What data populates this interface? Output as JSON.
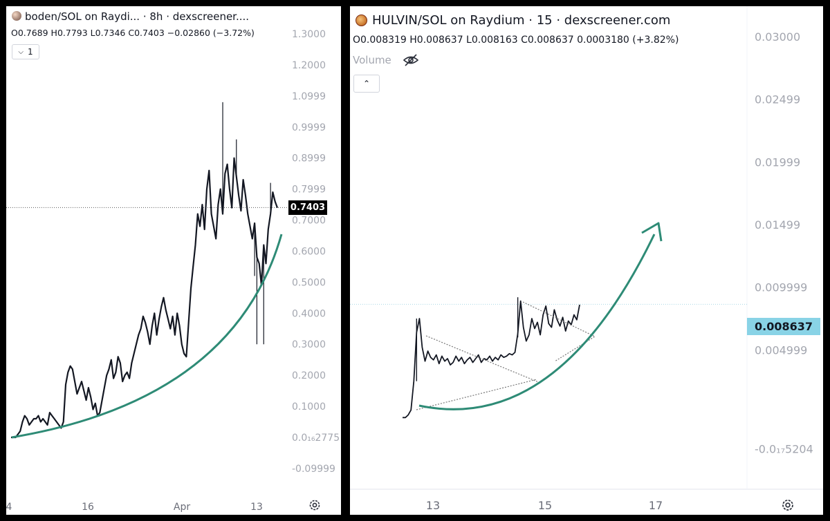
{
  "left": {
    "title": "boden/SOL on Raydi... · 8h · dexscreener....",
    "ohlc": "O0.7689 H0.7793 L0.7346 C0.7403 −0.02860 (−3.72%)",
    "collapse_label": "1",
    "last_price": "0.7403",
    "y_ticks": [
      "1.3000",
      "1.2000",
      "1.0999",
      "0.9999",
      "0.8999",
      "0.7999",
      "0.7000",
      "0.6000",
      "0.5000",
      "0.4000",
      "0.3000",
      "0.2000",
      "0.1000",
      "0.0₁₆2775",
      "-0.09999"
    ],
    "x_ticks": [
      "4",
      "16",
      "Apr",
      "13"
    ],
    "colors": {
      "line": "#131722",
      "curve": "#2e8b76",
      "tag_bg": "#000000",
      "tag_text": "#ffffff"
    }
  },
  "right": {
    "title": "HULVIN/SOL on Raydium · 15 · dexscreener.com",
    "ohlc": "O0.008319 H0.008637 L0.008163 C0.008637 0.0003180 (+3.82%)",
    "volume_label": "Volume",
    "last_price": "0.008637",
    "y_ticks": [
      "0.03000",
      "0.02499",
      "0.01999",
      "0.01499",
      "0.009999",
      "0.004999",
      "-0.0₁₇5204"
    ],
    "x_ticks": [
      "13",
      "15",
      "17"
    ],
    "colors": {
      "line": "#131722",
      "curve": "#2e8b76",
      "tag_bg": "#89d3e6",
      "tag_text": "#131722"
    }
  },
  "chart_data": [
    {
      "type": "line",
      "title": "boden/SOL on Raydi... · 8h · dexscreener....",
      "ylim": [
        -0.14,
        1.36
      ],
      "xlabel": "",
      "ylabel": "",
      "x_ticks": [
        "4",
        "16",
        "Apr",
        "13"
      ],
      "grid": false,
      "series": [
        {
          "values": [
            0.0,
            0.0,
            0.0,
            0.01,
            0.02,
            0.05,
            0.07,
            0.06,
            0.04,
            0.05,
            0.06,
            0.06,
            0.07,
            0.05,
            0.06,
            0.05,
            0.04,
            0.08,
            0.07,
            0.06,
            0.05,
            0.04,
            0.03,
            0.05,
            0.17,
            0.21,
            0.23,
            0.22,
            0.18,
            0.14,
            0.16,
            0.18,
            0.15,
            0.12,
            0.16,
            0.13,
            0.09,
            0.11,
            0.07,
            0.08,
            0.12,
            0.16,
            0.2,
            0.22,
            0.25,
            0.19,
            0.21,
            0.26,
            0.24,
            0.18,
            0.2,
            0.21,
            0.19,
            0.24,
            0.27,
            0.3,
            0.33,
            0.35,
            0.39,
            0.37,
            0.34,
            0.3,
            0.36,
            0.4,
            0.33,
            0.38,
            0.42,
            0.45,
            0.41,
            0.38,
            0.35,
            0.39,
            0.33,
            0.4,
            0.36,
            0.3,
            0.27,
            0.26,
            0.37,
            0.48,
            0.55,
            0.62,
            0.72,
            0.68,
            0.75,
            0.67,
            0.8,
            0.86,
            0.72,
            0.68,
            0.64,
            0.75,
            0.8,
            0.72,
            0.85,
            0.88,
            0.8,
            0.74,
            0.9,
            0.84,
            0.78,
            0.73,
            0.83,
            0.78,
            0.72,
            0.68,
            0.64,
            0.69,
            0.58,
            0.56,
            0.49,
            0.62,
            0.56,
            0.67,
            0.72,
            0.79,
            0.76,
            0.74
          ]
        }
      ],
      "annotations": [
        "0.7403"
      ]
    },
    {
      "type": "line",
      "title": "HULVIN/SOL on Raydium · 15 · dexscreener.com",
      "ylim": [
        -0.0025,
        0.031
      ],
      "xlabel": "",
      "ylabel": "",
      "x_ticks": [
        "13",
        "15",
        "17"
      ],
      "grid": false,
      "series": [
        {
          "values": [
            -0.0004,
            -0.0004,
            -0.0002,
            0.0002,
            0.0025,
            0.0064,
            0.0075,
            0.0052,
            0.0041,
            0.0049,
            0.0044,
            0.0042,
            0.0046,
            0.0039,
            0.0045,
            0.0041,
            0.0043,
            0.0038,
            0.004,
            0.0045,
            0.0041,
            0.0044,
            0.0039,
            0.0042,
            0.0044,
            0.004,
            0.0043,
            0.0046,
            0.004,
            0.0043,
            0.0042,
            0.0045,
            0.0041,
            0.0044,
            0.0042,
            0.0046,
            0.0044,
            0.0045,
            0.0047,
            0.0046,
            0.0048,
            0.0063,
            0.0089,
            0.0068,
            0.0057,
            0.0062,
            0.0075,
            0.0067,
            0.0072,
            0.0062,
            0.0078,
            0.0085,
            0.0071,
            0.0068,
            0.0082,
            0.0074,
            0.0069,
            0.0076,
            0.0065,
            0.0073,
            0.007,
            0.0078,
            0.0074,
            0.0086
          ]
        }
      ],
      "annotations": [
        "0.008637"
      ]
    }
  ]
}
